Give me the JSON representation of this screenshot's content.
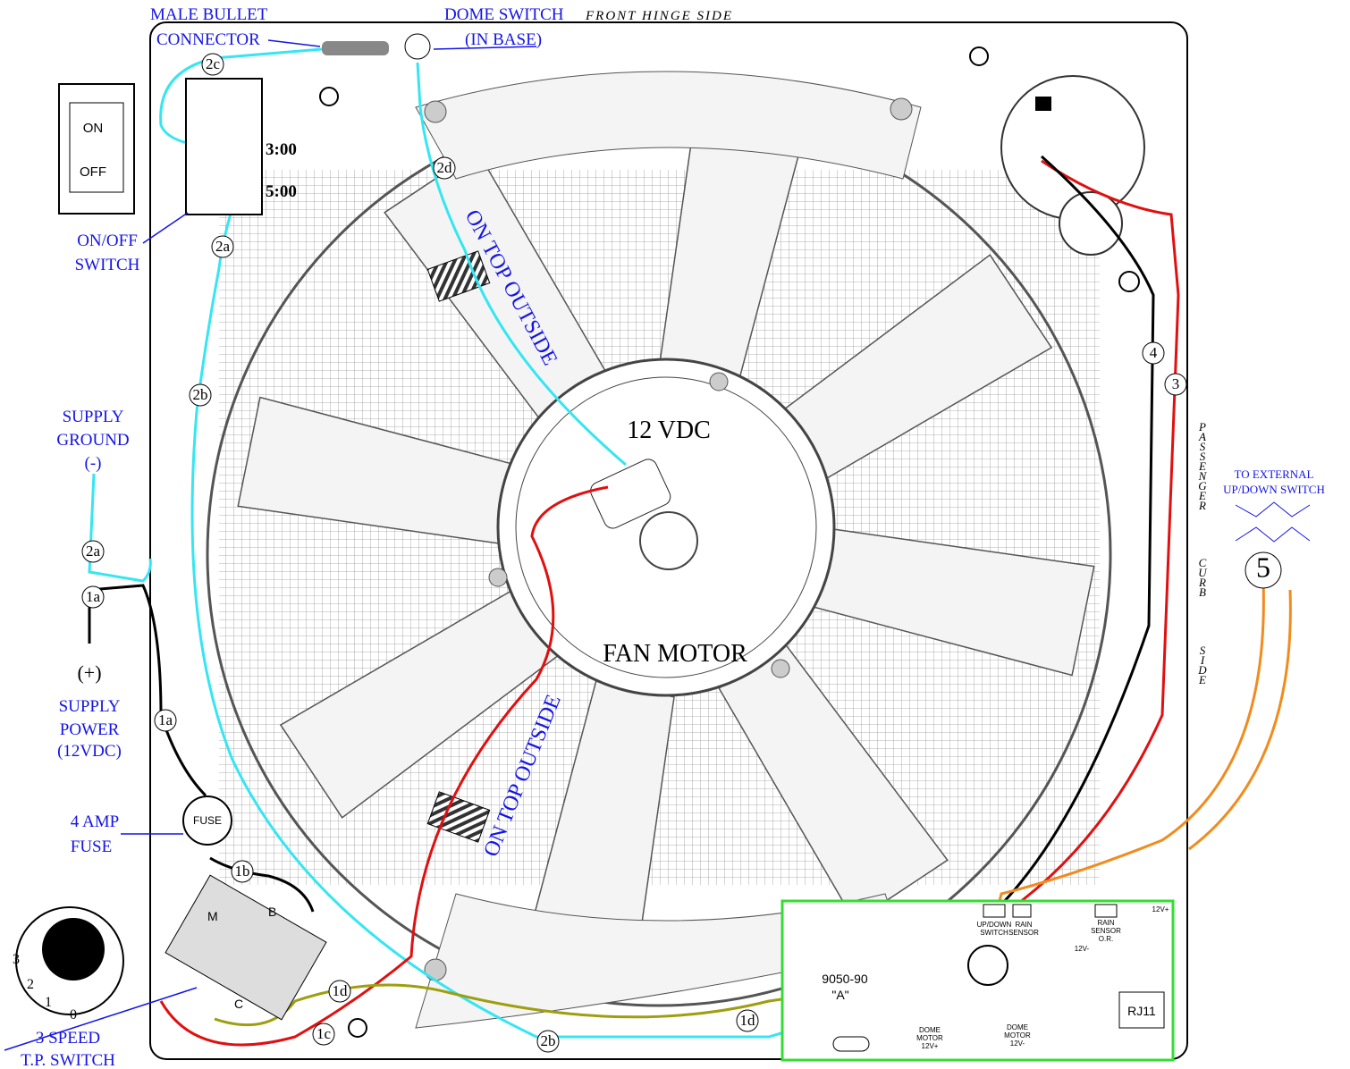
{
  "callouts": {
    "male_bullet": [
      "MALE BULLET",
      "CONNECTOR"
    ],
    "dome_switch": [
      "DOME SWITCH",
      "(IN BASE)"
    ],
    "front_side": "FRONT HINGE SIDE",
    "on_off": [
      "ON/OFF",
      "SWITCH"
    ],
    "supply_ground": [
      "SUPPLY",
      "GROUND",
      "(-)"
    ],
    "supply_power": [
      "(+)",
      "SUPPLY",
      "POWER",
      "(12VDC)"
    ],
    "fuse": [
      "4 AMP",
      "FUSE"
    ],
    "tp_switch": [
      "3 SPEED",
      "T.P. SWITCH"
    ],
    "external": [
      "TO EXTERNAL",
      "UP/DOWN SWITCH"
    ]
  },
  "rocker": {
    "on": "ON",
    "off": "OFF"
  },
  "switch_positions": [
    "3:00",
    "5:00"
  ],
  "fan": {
    "voltage": "12 VDC",
    "name": "FAN MOTOR",
    "placement": [
      "ON TOP OUTSIDE",
      "ON TOP OUTSIDE"
    ]
  },
  "side_labels": [
    "PASSENGER",
    "CURB",
    "SIDE"
  ],
  "wire_tags": [
    "2c",
    "2d",
    "2a",
    "2b",
    "2a",
    "1a",
    "1a",
    "1b",
    "1c",
    "1d",
    "1d",
    "2b",
    "4",
    "3",
    "5"
  ],
  "fuse_cap": "FUSE",
  "tp_letters": [
    "M",
    "B",
    "C"
  ],
  "dial": [
    "3",
    "2",
    "1",
    "0"
  ],
  "board": {
    "model": "9050-90",
    "variant": "\"A\"",
    "updown": [
      "UP/DOWN",
      "SWITCH"
    ],
    "rain": [
      "RAIN",
      "SENSOR"
    ],
    "rain_or": [
      "RAIN",
      "SENSOR",
      "O.R."
    ],
    "neg": "12V-",
    "pos": "12V+",
    "rj": "RJ11",
    "dome_pos": [
      "DOME",
      "MOTOR",
      "12V+"
    ],
    "dome_neg": [
      "DOME",
      "MOTOR",
      "12V-"
    ]
  }
}
